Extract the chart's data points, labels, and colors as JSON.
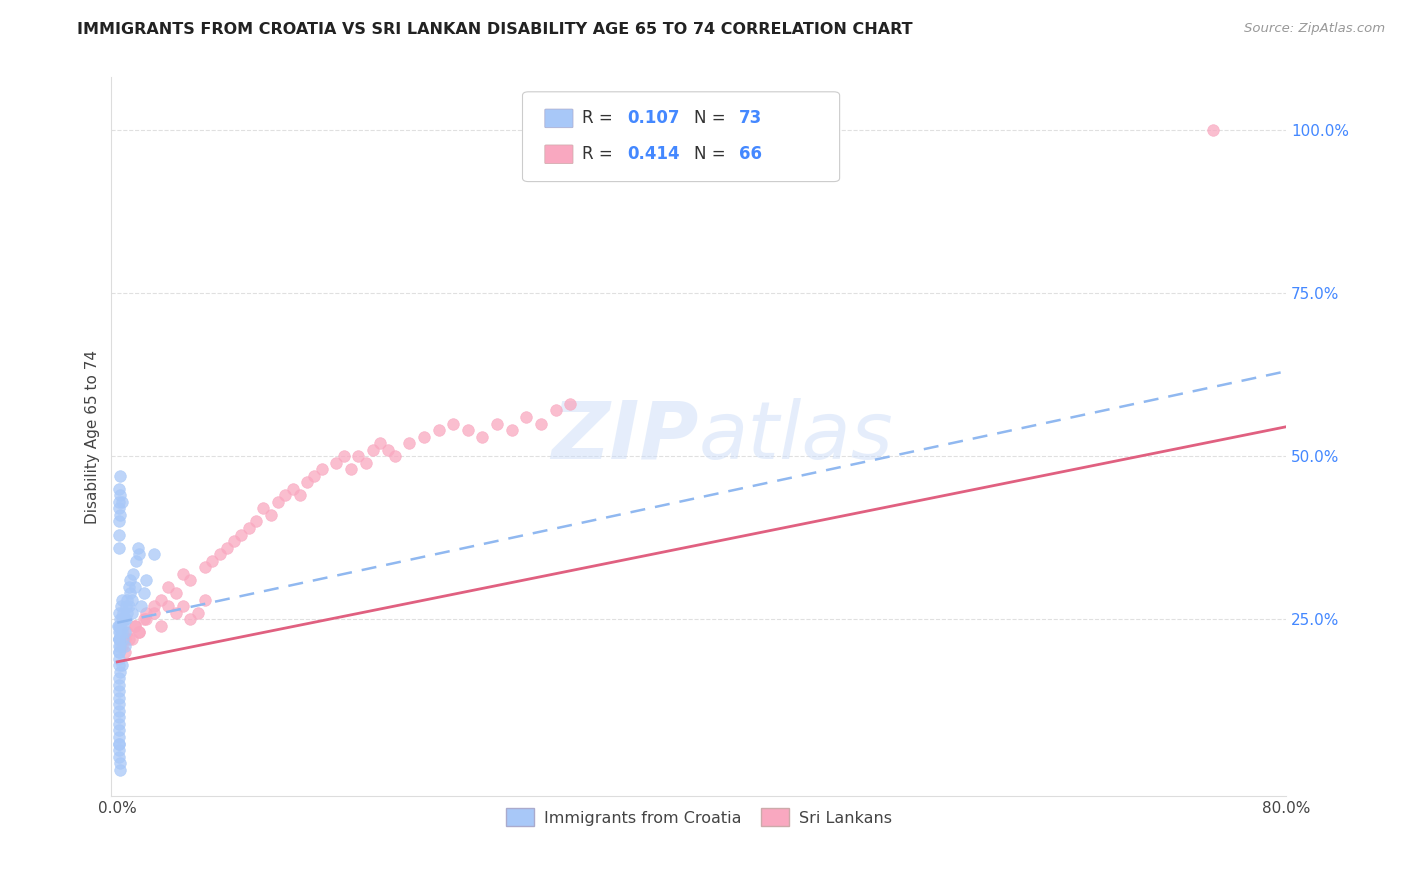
{
  "title": "IMMIGRANTS FROM CROATIA VS SRI LANKAN DISABILITY AGE 65 TO 74 CORRELATION CHART",
  "source": "Source: ZipAtlas.com",
  "ylabel": "Disability Age 65 to 74",
  "legend_label_1": "Immigrants from Croatia",
  "legend_label_2": "Sri Lankans",
  "R1": 0.107,
  "N1": 73,
  "R2": 0.414,
  "N2": 66,
  "color1": "#a8c8f8",
  "color2": "#f9a8c0",
  "right_axis_color": "#4488ff",
  "xlim": [
    -0.004,
    0.8
  ],
  "ylim": [
    -0.02,
    1.08
  ],
  "xtick_positions": [
    0.0,
    0.8
  ],
  "xtick_labels": [
    "0.0%",
    "80.0%"
  ],
  "yticks_right": [
    0.25,
    0.5,
    0.75,
    1.0
  ],
  "ytick_right_labels": [
    "25.0%",
    "50.0%",
    "75.0%",
    "100.0%"
  ],
  "croatia_x": [
    0.0005,
    0.001,
    0.0015,
    0.002,
    0.002,
    0.0025,
    0.003,
    0.003,
    0.003,
    0.004,
    0.004,
    0.004,
    0.005,
    0.005,
    0.005,
    0.006,
    0.006,
    0.007,
    0.007,
    0.008,
    0.008,
    0.009,
    0.009,
    0.01,
    0.01,
    0.011,
    0.012,
    0.013,
    0.014,
    0.015,
    0.001,
    0.002,
    0.003,
    0.001,
    0.002,
    0.001,
    0.002,
    0.001,
    0.001,
    0.001,
    0.001,
    0.002,
    0.001,
    0.002,
    0.001,
    0.002,
    0.003,
    0.001,
    0.001,
    0.001,
    0.001,
    0.001,
    0.001,
    0.001,
    0.001,
    0.001,
    0.001,
    0.001,
    0.001,
    0.001,
    0.016,
    0.018,
    0.02,
    0.025,
    0.001,
    0.001,
    0.001,
    0.002,
    0.002,
    0.001,
    0.001,
    0.001,
    0.001
  ],
  "croatia_y": [
    0.24,
    0.26,
    0.22,
    0.25,
    0.23,
    0.27,
    0.25,
    0.23,
    0.28,
    0.24,
    0.26,
    0.22,
    0.25,
    0.23,
    0.21,
    0.27,
    0.25,
    0.28,
    0.26,
    0.3,
    0.27,
    0.29,
    0.31,
    0.28,
    0.26,
    0.32,
    0.3,
    0.34,
    0.36,
    0.35,
    0.45,
    0.47,
    0.43,
    0.42,
    0.44,
    0.4,
    0.41,
    0.43,
    0.38,
    0.36,
    0.22,
    0.24,
    0.2,
    0.21,
    0.19,
    0.17,
    0.18,
    0.16,
    0.14,
    0.12,
    0.11,
    0.1,
    0.09,
    0.08,
    0.07,
    0.06,
    0.15,
    0.13,
    0.18,
    0.2,
    0.27,
    0.29,
    0.31,
    0.35,
    0.04,
    0.05,
    0.06,
    0.03,
    0.02,
    0.22,
    0.23,
    0.21,
    0.24
  ],
  "srilanka_x": [
    0.003,
    0.005,
    0.007,
    0.01,
    0.012,
    0.015,
    0.018,
    0.02,
    0.025,
    0.03,
    0.035,
    0.04,
    0.045,
    0.05,
    0.06,
    0.065,
    0.07,
    0.075,
    0.08,
    0.085,
    0.09,
    0.095,
    0.1,
    0.105,
    0.11,
    0.115,
    0.12,
    0.125,
    0.13,
    0.135,
    0.14,
    0.15,
    0.155,
    0.16,
    0.165,
    0.17,
    0.175,
    0.18,
    0.185,
    0.19,
    0.2,
    0.21,
    0.22,
    0.23,
    0.24,
    0.25,
    0.26,
    0.27,
    0.28,
    0.29,
    0.005,
    0.008,
    0.012,
    0.015,
    0.02,
    0.025,
    0.03,
    0.035,
    0.04,
    0.045,
    0.05,
    0.055,
    0.06,
    0.3,
    0.31,
    0.75
  ],
  "srilanka_y": [
    0.21,
    0.22,
    0.23,
    0.22,
    0.24,
    0.23,
    0.25,
    0.26,
    0.27,
    0.28,
    0.3,
    0.29,
    0.32,
    0.31,
    0.33,
    0.34,
    0.35,
    0.36,
    0.37,
    0.38,
    0.39,
    0.4,
    0.42,
    0.41,
    0.43,
    0.44,
    0.45,
    0.44,
    0.46,
    0.47,
    0.48,
    0.49,
    0.5,
    0.48,
    0.5,
    0.49,
    0.51,
    0.52,
    0.51,
    0.5,
    0.52,
    0.53,
    0.54,
    0.55,
    0.54,
    0.53,
    0.55,
    0.54,
    0.56,
    0.55,
    0.2,
    0.22,
    0.24,
    0.23,
    0.25,
    0.26,
    0.24,
    0.27,
    0.26,
    0.27,
    0.25,
    0.26,
    0.28,
    0.57,
    0.58,
    1.0
  ],
  "trendline1_start_x": 0.0,
  "trendline1_end_x": 0.8,
  "trendline1_start_y": 0.245,
  "trendline1_end_y": 0.63,
  "trendline2_start_x": 0.0,
  "trendline2_end_x": 0.8,
  "trendline2_start_y": 0.185,
  "trendline2_end_y": 0.545,
  "watermark_zip": "ZIP",
  "watermark_atlas": "atlas",
  "background_color": "#ffffff",
  "grid_color": "#e0e0e0"
}
